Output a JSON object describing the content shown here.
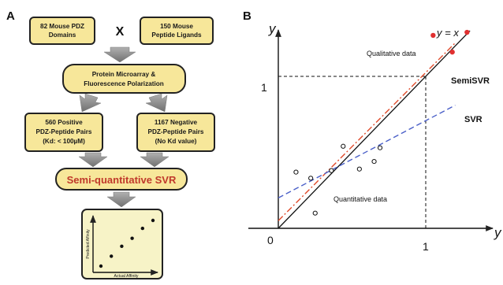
{
  "panel_a": {
    "label": "A",
    "box1": {
      "line1": "82 Mouse PDZ",
      "line2": "Domains"
    },
    "times_symbol": "X",
    "box2": {
      "line1": "150 Mouse",
      "line2": "Peptide Ligands"
    },
    "box3": {
      "line1": "Protein Microarray &",
      "line2": "Fluorescence Polarization"
    },
    "box4": {
      "line1": "560 Positive",
      "line2": "PDZ-Peptide Pairs",
      "line3": "(Kd: < 100µM)"
    },
    "box5": {
      "line1": "1167 Negative",
      "line2": "PDZ-Peptide Pairs",
      "line3": "(No Kd value)"
    },
    "main_box": "Semi-quantitative SVR",
    "mini_plot": {
      "ylabel": "Predicted Affinity",
      "xlabel": "Actual Affinity",
      "points": [
        [
          1,
          1
        ],
        [
          2,
          2
        ],
        [
          3,
          3
        ],
        [
          4,
          3.8
        ],
        [
          5,
          4.8
        ],
        [
          6,
          5.6
        ]
      ]
    },
    "colors": {
      "box_fill": "#f7e79a",
      "box_stroke": "#222222",
      "arrow": "#8c8c8c",
      "main_text": "#c0392b"
    }
  },
  "panel_b": {
    "label": "B",
    "y_axis_label": "y",
    "x_axis_label": "y",
    "identity_label": "y = x",
    "tick_y_1": "1",
    "tick_x_1": "1",
    "origin": "0",
    "qualitative_label": "Qualitative data",
    "quantitative_label": "Quantitative data",
    "semisvr_label": "SemiSVR",
    "svr_label": "SVR",
    "colors": {
      "semisvr": "#e04a2a",
      "svr": "#4a5fc8",
      "qual_points": "#e03030"
    }
  },
  "chart_data": {
    "type": "scatter",
    "xlim": [
      0,
      1.4
    ],
    "ylim": [
      0,
      1.4
    ],
    "grid": false,
    "series": [
      {
        "name": "",
        "kind": "quantitative-points",
        "points": [
          [
            0.12,
            0.37
          ],
          [
            0.22,
            0.33
          ],
          [
            0.25,
            0.1
          ],
          [
            0.36,
            0.38
          ],
          [
            0.44,
            0.54
          ],
          [
            0.55,
            0.39
          ],
          [
            0.65,
            0.44
          ],
          [
            0.69,
            0.53
          ]
        ]
      },
      {
        "name": "",
        "kind": "qualitative-points",
        "points": [
          [
            1.05,
            1.27
          ],
          [
            1.28,
            1.29
          ],
          [
            1.18,
            1.16
          ]
        ]
      },
      {
        "name": "",
        "kind": "reference-line",
        "points": [
          [
            0,
            0
          ],
          [
            1.3,
            1.3
          ]
        ]
      },
      {
        "name": "SemiSVR",
        "kind": "fit-line",
        "points": [
          [
            0,
            0.05
          ],
          [
            1.2,
            1.22
          ]
        ]
      },
      {
        "name": "SVR",
        "kind": "fit-line",
        "points": [
          [
            0,
            0.2
          ],
          [
            1.2,
            0.81
          ]
        ]
      }
    ],
    "reference_point": [
      1,
      1
    ]
  }
}
